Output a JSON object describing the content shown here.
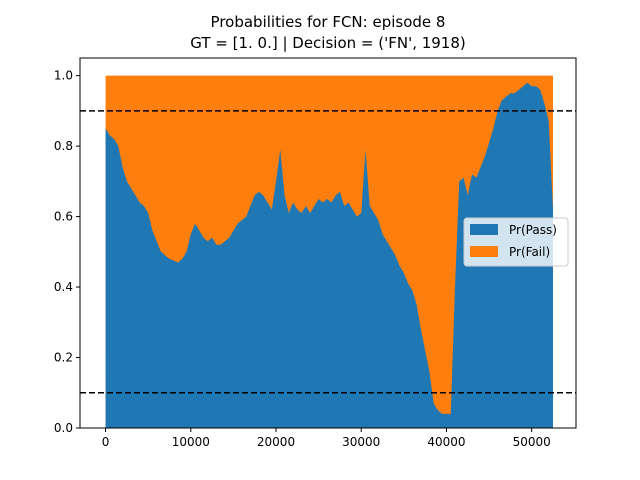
{
  "chart_data": {
    "type": "area",
    "title_line1": "Probabilities for FCN: episode 8",
    "title_line2": "GT = [1. 0.] | Decision = ('FN', 1918)",
    "xlabel": "",
    "ylabel": "",
    "xlim": [
      -3000,
      55200
    ],
    "ylim": [
      0,
      1.05
    ],
    "x_ticks": [
      0,
      10000,
      20000,
      30000,
      40000,
      50000
    ],
    "y_ticks": [
      0.0,
      0.2,
      0.4,
      0.6,
      0.8,
      1.0
    ],
    "grid": false,
    "legend_position": "center-right",
    "thresholds": [
      0.9,
      0.1
    ],
    "colors": {
      "pass": "#1f77b4",
      "fail": "#ff7f0e",
      "threshold": "#000000"
    },
    "series": [
      {
        "name": "Pr(Pass)",
        "stack_order": 1
      },
      {
        "name": "Pr(Fail)",
        "stack_order": 2,
        "is_complement": true
      }
    ],
    "x": [
      0,
      500,
      1000,
      1500,
      2000,
      2500,
      3000,
      3500,
      4000,
      4500,
      5000,
      5500,
      6000,
      6500,
      7000,
      7500,
      8000,
      8500,
      9000,
      9500,
      10000,
      10500,
      11000,
      11500,
      12000,
      12500,
      13000,
      13500,
      14000,
      14500,
      15000,
      15500,
      16000,
      16500,
      17000,
      17500,
      18000,
      18500,
      19000,
      19500,
      20000,
      20500,
      21000,
      21500,
      22000,
      22500,
      23000,
      23500,
      24000,
      24500,
      25000,
      25500,
      26000,
      26500,
      27000,
      27500,
      28000,
      28500,
      29000,
      29500,
      30000,
      30500,
      31000,
      31500,
      32000,
      32500,
      33000,
      33500,
      34000,
      34500,
      35000,
      35500,
      36000,
      36500,
      37000,
      37500,
      38000,
      38500,
      39000,
      39500,
      40000,
      40500,
      41000,
      41500,
      42000,
      42500,
      43000,
      43500,
      44000,
      44500,
      45000,
      45500,
      46000,
      46500,
      47000,
      47500,
      48000,
      48500,
      49000,
      49500,
      50000,
      50500,
      51000,
      51500,
      52000,
      52500
    ],
    "pass": [
      0.85,
      0.83,
      0.82,
      0.8,
      0.74,
      0.7,
      0.68,
      0.66,
      0.64,
      0.63,
      0.61,
      0.56,
      0.53,
      0.5,
      0.49,
      0.48,
      0.475,
      0.47,
      0.48,
      0.5,
      0.55,
      0.58,
      0.56,
      0.54,
      0.53,
      0.54,
      0.52,
      0.52,
      0.53,
      0.54,
      0.56,
      0.58,
      0.59,
      0.6,
      0.63,
      0.66,
      0.67,
      0.66,
      0.64,
      0.62,
      0.7,
      0.79,
      0.66,
      0.61,
      0.64,
      0.62,
      0.61,
      0.63,
      0.61,
      0.63,
      0.65,
      0.64,
      0.65,
      0.64,
      0.66,
      0.67,
      0.63,
      0.64,
      0.62,
      0.6,
      0.61,
      0.79,
      0.63,
      0.61,
      0.59,
      0.55,
      0.53,
      0.51,
      0.49,
      0.46,
      0.44,
      0.41,
      0.39,
      0.35,
      0.28,
      0.22,
      0.16,
      0.07,
      0.05,
      0.04,
      0.04,
      0.04,
      0.4,
      0.7,
      0.71,
      0.66,
      0.72,
      0.71,
      0.74,
      0.77,
      0.81,
      0.85,
      0.9,
      0.93,
      0.94,
      0.95,
      0.95,
      0.96,
      0.97,
      0.98,
      0.97,
      0.97,
      0.96,
      0.92,
      0.87,
      0.62
    ]
  }
}
